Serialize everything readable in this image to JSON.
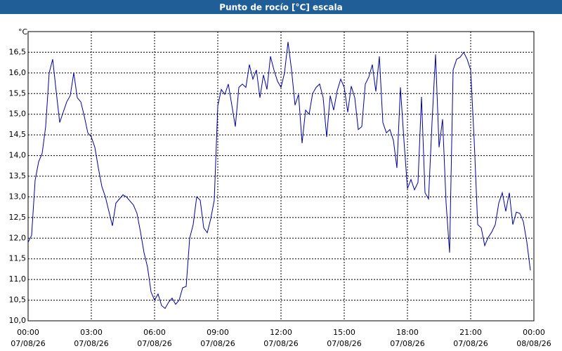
{
  "chart_data": {
    "type": "line",
    "title": "Punto de rocío [°C] escala",
    "y_unit": "°C",
    "x": [
      0,
      10,
      20,
      30,
      40,
      50,
      60,
      70,
      80,
      90,
      100,
      110,
      120,
      130,
      140,
      150,
      160,
      170,
      180,
      190,
      200,
      210,
      220,
      230,
      240,
      250,
      260,
      270,
      280,
      290,
      300,
      310,
      320,
      330,
      340,
      350,
      360,
      370,
      380,
      390,
      400,
      410,
      420,
      430,
      440,
      450,
      460,
      470,
      480,
      490,
      500,
      510,
      520,
      530,
      540,
      550,
      560,
      570,
      580,
      590,
      600,
      610,
      620,
      630,
      640,
      650,
      660,
      670,
      680,
      690,
      700,
      710,
      720,
      730,
      740,
      750,
      760,
      770,
      780,
      790,
      800,
      810,
      820,
      830,
      840,
      850,
      860,
      870,
      880,
      890,
      900,
      910,
      920,
      930,
      940,
      950,
      960,
      970,
      980,
      990,
      1000,
      1010,
      1020,
      1030,
      1040,
      1050,
      1060,
      1070,
      1080,
      1090,
      1100,
      1110,
      1120,
      1130,
      1140,
      1150,
      1160,
      1170,
      1180,
      1190,
      1200,
      1210,
      1220,
      1230,
      1240,
      1250,
      1260,
      1270,
      1280,
      1290,
      1300,
      1310,
      1320,
      1330,
      1340,
      1350,
      1360,
      1370,
      1380,
      1390,
      1400,
      1410,
      1420,
      1430
    ],
    "series": [
      {
        "name": "Punto de rocío",
        "color": "#0000a0",
        "values": [
          11.9,
          12.07,
          13.4,
          13.85,
          14.05,
          14.7,
          16.0,
          16.33,
          15.55,
          14.8,
          15.05,
          15.3,
          15.45,
          16.0,
          15.4,
          15.3,
          14.95,
          14.55,
          14.45,
          14.2,
          13.7,
          13.25,
          13.0,
          12.65,
          12.3,
          12.85,
          12.95,
          13.05,
          13.0,
          12.9,
          12.8,
          12.6,
          12.15,
          11.65,
          11.3,
          10.7,
          10.5,
          10.65,
          10.37,
          10.3,
          10.45,
          10.55,
          10.4,
          10.5,
          10.8,
          10.83,
          12.0,
          12.33,
          13.0,
          12.92,
          12.25,
          12.13,
          12.47,
          12.92,
          15.2,
          15.6,
          15.48,
          15.73,
          15.22,
          14.7,
          15.65,
          15.73,
          15.65,
          16.2,
          15.85,
          16.07,
          15.4,
          15.95,
          15.6,
          16.4,
          16.07,
          15.8,
          15.65,
          16.0,
          16.75,
          16.07,
          15.22,
          15.48,
          14.3,
          15.1,
          15.0,
          15.5,
          15.65,
          15.73,
          15.4,
          14.45,
          15.45,
          15.1,
          15.57,
          15.85,
          15.65,
          15.05,
          15.68,
          15.4,
          14.63,
          14.7,
          15.73,
          15.9,
          16.2,
          15.55,
          16.4,
          14.8,
          14.55,
          14.63,
          14.37,
          13.7,
          15.65,
          14.37,
          13.2,
          13.42,
          13.17,
          13.35,
          15.42,
          13.1,
          12.95,
          14.8,
          16.45,
          14.2,
          14.88,
          12.85,
          11.65,
          16.07,
          16.33,
          16.38,
          16.5,
          16.33,
          16.07,
          14.37,
          12.33,
          12.25,
          11.82,
          12.02,
          12.15,
          12.33,
          12.85,
          13.1,
          12.65,
          13.1,
          12.33,
          12.63,
          12.6,
          12.4,
          11.9,
          11.22
        ]
      }
    ],
    "xlim": [
      0,
      1440
    ],
    "xticks": [
      {
        "value": 0,
        "label": "00:00",
        "date": "07/08/26"
      },
      {
        "value": 180,
        "label": "03:00",
        "date": "07/08/26"
      },
      {
        "value": 360,
        "label": "06:00",
        "date": "07/08/26"
      },
      {
        "value": 540,
        "label": "09:00",
        "date": "07/08/26"
      },
      {
        "value": 720,
        "label": "12:00",
        "date": "07/08/26"
      },
      {
        "value": 900,
        "label": "15:00",
        "date": "07/08/26"
      },
      {
        "value": 1080,
        "label": "18:00",
        "date": "07/08/26"
      },
      {
        "value": 1260,
        "label": "21:00",
        "date": "07/08/26"
      },
      {
        "value": 1440,
        "label": "00:00",
        "date": "08/08/26"
      }
    ],
    "ylim": [
      10,
      17
    ],
    "yticks": [
      {
        "value": 10,
        "label": "10,0"
      },
      {
        "value": 10.5,
        "label": "10,5"
      },
      {
        "value": 11,
        "label": "11,0"
      },
      {
        "value": 11.5,
        "label": "11,5"
      },
      {
        "value": 12,
        "label": "12,0"
      },
      {
        "value": 12.5,
        "label": "12,5"
      },
      {
        "value": 13,
        "label": "13,0"
      },
      {
        "value": 13.5,
        "label": "13,5"
      },
      {
        "value": 14,
        "label": "14,0"
      },
      {
        "value": 14.5,
        "label": "14,5"
      },
      {
        "value": 15,
        "label": "15,0"
      },
      {
        "value": 15.5,
        "label": "15,5"
      },
      {
        "value": 16,
        "label": "16,0"
      },
      {
        "value": 16.5,
        "label": "16,5"
      }
    ],
    "grid": true
  }
}
